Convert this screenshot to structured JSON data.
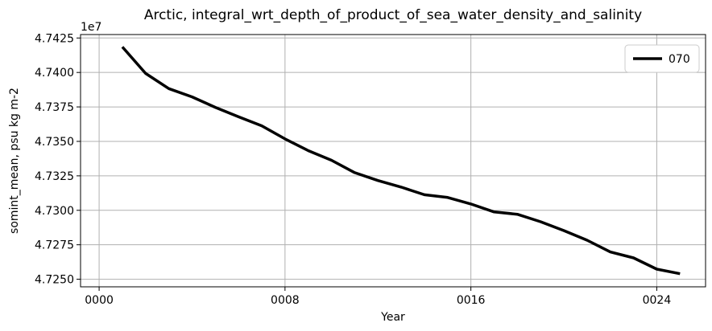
{
  "chart_data": {
    "type": "line",
    "title": "Arctic, integral_wrt_depth_of_product_of_sea_water_density_and_salinity",
    "xlabel": "Year",
    "ylabel": "somint_mean, psu kg m-2",
    "y_offset_label": "1e7",
    "xlim": [
      -0.8,
      26.1
    ],
    "ylim": [
      4.72445,
      4.74275
    ],
    "x_ticks": [
      0,
      8,
      16,
      24
    ],
    "x_tick_labels": [
      "0000",
      "0008",
      "0016",
      "0024"
    ],
    "y_ticks": [
      4.725,
      4.7275,
      4.73,
      4.7325,
      4.735,
      4.7375,
      4.74,
      4.7425
    ],
    "y_tick_labels": [
      "4.7250",
      "4.7275",
      "4.7300",
      "4.7325",
      "4.7350",
      "4.7375",
      "4.7400",
      "4.7425"
    ],
    "grid": true,
    "legend_position": "top-right",
    "series": [
      {
        "name": "070",
        "color": "#000000",
        "x": [
          1,
          2,
          3,
          4,
          5,
          6,
          7,
          8,
          9,
          10,
          11,
          12,
          13,
          14,
          15,
          16,
          17,
          18,
          19,
          20,
          21,
          22,
          23,
          24,
          25
        ],
        "values": [
          4.74185,
          4.73993,
          4.73883,
          4.73823,
          4.73747,
          4.73678,
          4.73613,
          4.73518,
          4.73433,
          4.73363,
          4.73273,
          4.73216,
          4.73168,
          4.73113,
          4.73093,
          4.73046,
          4.72988,
          4.72971,
          4.72917,
          4.72853,
          4.72783,
          4.72698,
          4.72655,
          4.72573,
          4.7254
        ]
      }
    ]
  }
}
